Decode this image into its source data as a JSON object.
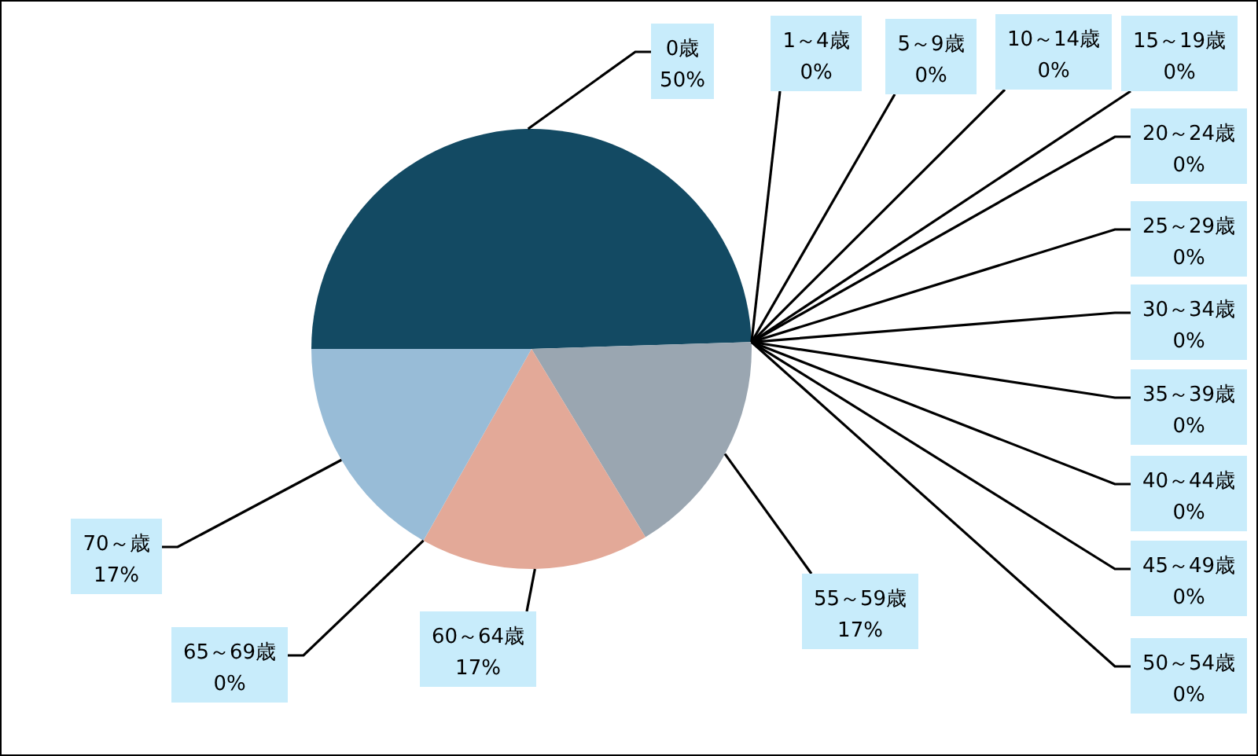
{
  "chart_data": {
    "type": "pie",
    "categories": [
      "0歳",
      "1～4歳",
      "5～9歳",
      "10～14歳",
      "15～19歳",
      "20～24歳",
      "25～29歳",
      "30～34歳",
      "35～39歳",
      "40～44歳",
      "45～49歳",
      "50～54歳",
      "55～59歳",
      "60～64歳",
      "65～69歳",
      "70～歳"
    ],
    "values": [
      50,
      0,
      0,
      0,
      0,
      0,
      0,
      0,
      0,
      0,
      0,
      0,
      17,
      17,
      0,
      17
    ],
    "value_labels": [
      "50%",
      "0%",
      "0%",
      "0%",
      "0%",
      "0%",
      "0%",
      "0%",
      "0%",
      "0%",
      "0%",
      "0%",
      "17%",
      "17%",
      "0%",
      "17%"
    ],
    "colors": [
      "#134a63",
      null,
      null,
      null,
      null,
      null,
      null,
      null,
      null,
      null,
      null,
      null,
      "#9aa6b1",
      "#e3a998",
      null,
      "#98bcd7"
    ]
  }
}
